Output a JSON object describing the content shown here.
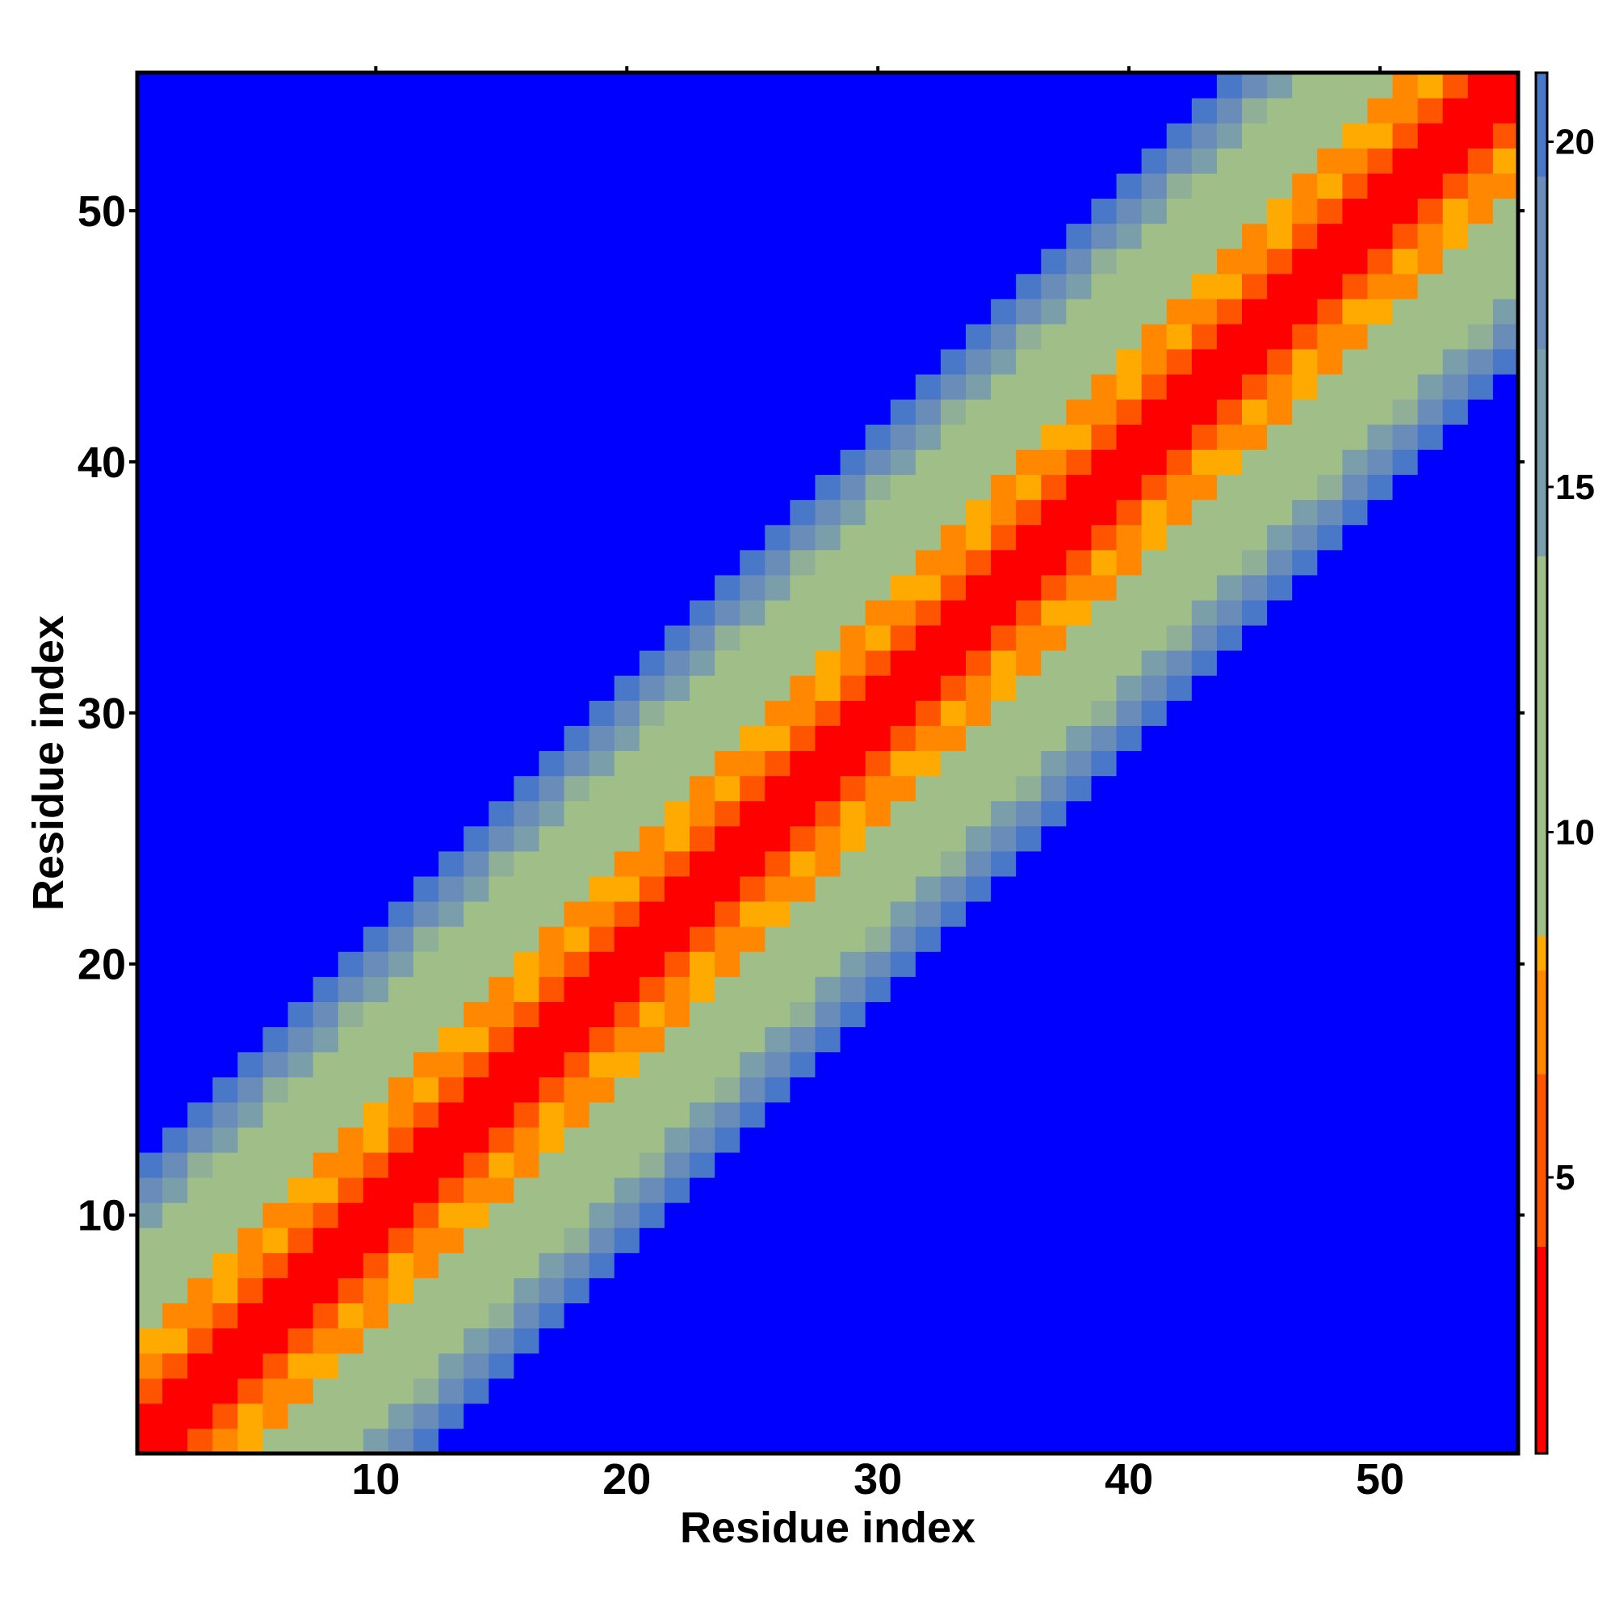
{
  "chart_data": {
    "type": "heatmap",
    "title": "",
    "xlabel": "Residue index",
    "ylabel": "Residue index",
    "n_residues": 55,
    "x_ticks": [
      10,
      20,
      30,
      40,
      50
    ],
    "y_ticks": [
      10,
      20,
      30,
      40,
      50
    ],
    "colorbar": {
      "range": [
        1,
        21
      ],
      "ticks": [
        5,
        10,
        15,
        20
      ],
      "bands": [
        {
          "from": 1,
          "to": 4.0,
          "color": "#ff0000"
        },
        {
          "from": 4.0,
          "to": 6.5,
          "color": "#ff5500"
        },
        {
          "from": 6.5,
          "to": 8.0,
          "color": "#ff8800"
        },
        {
          "from": 8.0,
          "to": 8.5,
          "color": "#ffaa00"
        },
        {
          "from": 8.5,
          "to": 14.0,
          "color": "#a0bf88"
        },
        {
          "from": 14.0,
          "to": 17.0,
          "color": "#7a9eaa"
        },
        {
          "from": 17.0,
          "to": 19.5,
          "color": "#6a8cb8"
        },
        {
          "from": 19.5,
          "to": 21.0,
          "color": "#4a78c8"
        }
      ]
    },
    "description_note": "",
    "value_model": {
      "diagonal_value": 1,
      "value_per_residue_offset": 1.8,
      "cutoff_value": 21
    },
    "level_colors": {
      "d0": "#ff0000",
      "d1": "#ff0000",
      "d2": "#ff5500",
      "d3": "#ffaa00",
      "d4": "#ff8800",
      "d5": "#a0bf88",
      "d6": "#a0bf88",
      "d7": "#a0bf88",
      "d8": "#8fb096",
      "d9": "#7a9eaa",
      "d10": "#6a8cb8",
      "d11": "#4a78c8",
      "far": "#0000ff"
    }
  }
}
